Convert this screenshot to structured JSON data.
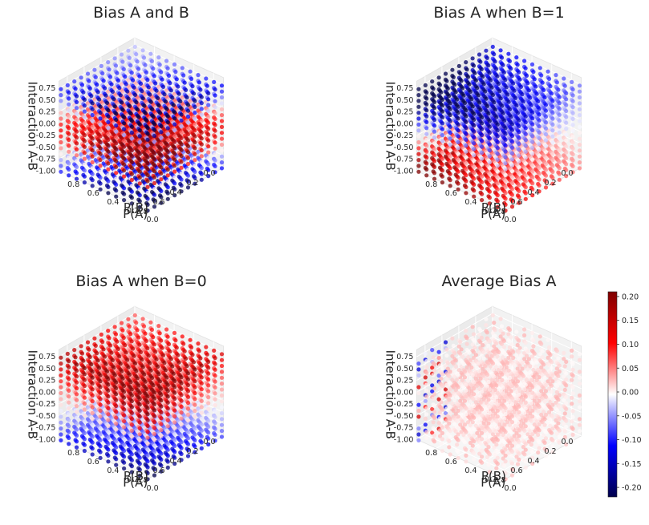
{
  "chart_data": [
    {
      "type": "scatter3d",
      "title": "Bias A and B",
      "xlabel": "P(A)",
      "ylabel": "P(B)",
      "zlabel": "Interaction A-B",
      "x_ticks": [
        "0.0",
        "0.2",
        "0.4",
        "0.6",
        "0.8"
      ],
      "y_ticks": [
        "0.0",
        "0.2",
        "0.4",
        "0.6",
        "0.8"
      ],
      "z_ticks": [
        "0.75",
        "0.50",
        "0.25",
        "0.00",
        "-0.25",
        "-0.50",
        "-0.75",
        "-1.00"
      ],
      "xlim": [
        0,
        0.9
      ],
      "ylim": [
        0,
        0.9
      ],
      "zlim": [
        -1,
        0.9
      ],
      "color_pattern": "bias_ab"
    },
    {
      "type": "scatter3d",
      "title": "Bias A when B=1",
      "xlabel": "P(A)",
      "ylabel": "P(B)",
      "zlabel": "Interaction A-B",
      "x_ticks": [
        "0.0",
        "0.2",
        "0.4",
        "0.6",
        "0.8"
      ],
      "y_ticks": [
        "0.0",
        "0.2",
        "0.4",
        "0.6",
        "0.8"
      ],
      "z_ticks": [
        "0.75",
        "0.50",
        "0.25",
        "0.00",
        "-0.25",
        "-0.50",
        "-0.75",
        "-1.00"
      ],
      "xlim": [
        0,
        0.9
      ],
      "ylim": [
        0,
        0.9
      ],
      "zlim": [
        -1,
        0.9
      ],
      "color_pattern": "bias_a_b1"
    },
    {
      "type": "scatter3d",
      "title": "Bias A when B=0",
      "xlabel": "P(A)",
      "ylabel": "P(B)",
      "zlabel": "Interaction A-B",
      "x_ticks": [
        "0.0",
        "0.2",
        "0.4",
        "0.6",
        "0.8"
      ],
      "y_ticks": [
        "0.0",
        "0.2",
        "0.4",
        "0.6",
        "0.8"
      ],
      "z_ticks": [
        "0.75",
        "0.50",
        "0.25",
        "0.00",
        "-0.25",
        "-0.50",
        "-0.75",
        "-1.00"
      ],
      "xlim": [
        0,
        0.9
      ],
      "ylim": [
        0,
        0.9
      ],
      "zlim": [
        -1,
        0.9
      ],
      "color_pattern": "bias_a_b0"
    },
    {
      "type": "scatter3d",
      "title": "Average Bias A",
      "xlabel": "P(A)",
      "ylabel": "P(B)",
      "zlabel": "Interaction A-B",
      "x_ticks": [
        "0.0",
        "0.2",
        "0.4",
        "0.6",
        "0.8"
      ],
      "y_ticks": [
        "0.0",
        "0.2",
        "0.4",
        "0.6",
        "0.8"
      ],
      "z_ticks": [
        "0.75",
        "0.50",
        "0.25",
        "0.00",
        "-0.25",
        "-0.50",
        "-0.75",
        "-1.00"
      ],
      "xlim": [
        0,
        0.9
      ],
      "ylim": [
        0,
        0.9
      ],
      "zlim": [
        -1,
        0.9
      ],
      "color_pattern": "average_bias_a"
    }
  ],
  "colorbar": {
    "colormap": "seismic",
    "min": -0.22,
    "max": 0.21,
    "ticks": [
      0.2,
      0.15,
      0.1,
      0.05,
      0.0,
      -0.05,
      -0.1,
      -0.15,
      -0.2
    ],
    "tick_labels": [
      "0.20",
      "0.15",
      "0.10",
      "0.05",
      "0.00",
      "-0.05",
      "-0.10",
      "-0.15",
      "-0.20"
    ],
    "colors": [
      "#00004c",
      "#0000ff",
      "#ffffff",
      "#ff0000",
      "#7f0000"
    ]
  },
  "style": {
    "pane_color": "#f2f2f2",
    "grid_color": "#ffffff",
    "text_color": "#262626",
    "point_alpha": 0.75
  }
}
